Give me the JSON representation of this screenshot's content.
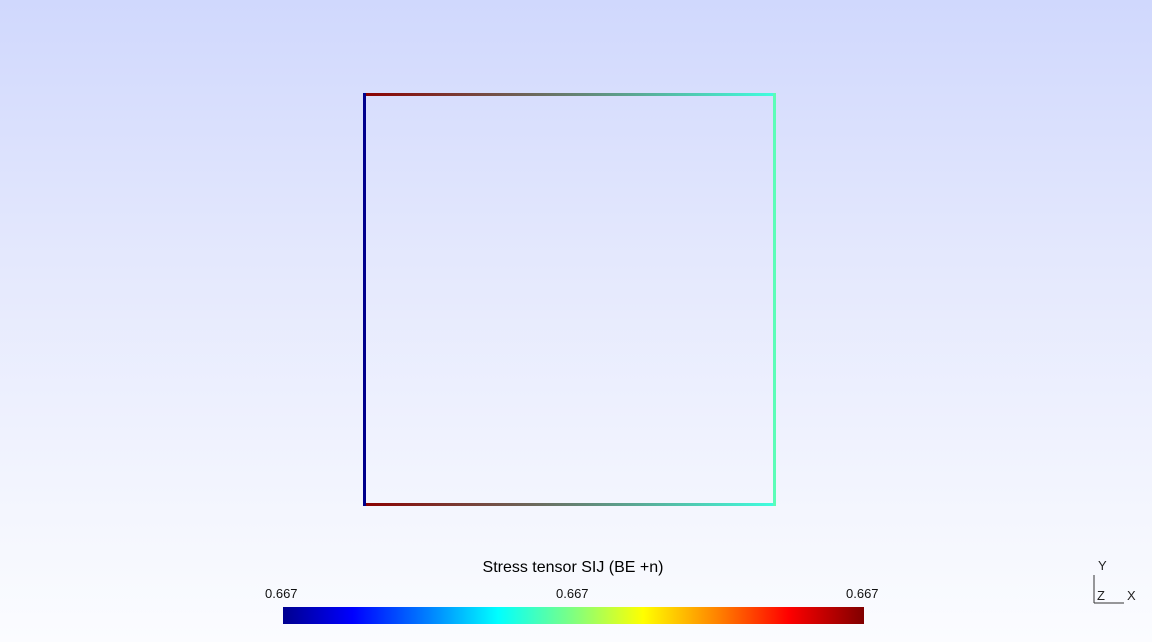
{
  "colorbar": {
    "title": "Stress tensor SIJ (BE +n)",
    "tick_left": "0.667",
    "tick_mid": "0.667",
    "tick_right": "0.667",
    "colormap": "jet"
  },
  "axes": {
    "y_label": "Y",
    "z_label": "Z",
    "x_label": "X"
  },
  "colors": {
    "left_edge": "#00008b",
    "top_left_corner": "#8b0000",
    "top_right_corner": "#40ffe0",
    "bottom_left_corner": "#8b0000",
    "bottom_right_corner": "#40ffe0",
    "right_edge": "#5cfdb8"
  }
}
